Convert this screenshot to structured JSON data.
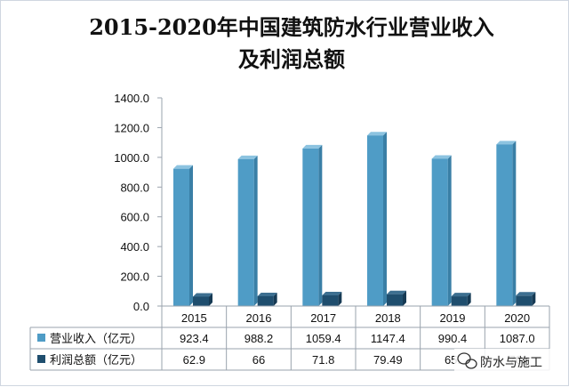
{
  "chart_data": {
    "type": "bar",
    "title_line1": "2015-2020年中国建筑防水行业营业收入",
    "title_line2": "及利润总额",
    "categories": [
      "2015",
      "2016",
      "2017",
      "2018",
      "2019",
      "2020"
    ],
    "series": [
      {
        "name": "营业收入（亿元）",
        "values": [
          923.4,
          988.2,
          1059.4,
          1147.4,
          990.4,
          1087.0
        ],
        "labels": [
          "923.4",
          "988.2",
          "1059.4",
          "1147.4",
          "990.4",
          "1087.0"
        ],
        "color": "#4f9cc6"
      },
      {
        "name": "利润总额（亿元）",
        "values": [
          62.9,
          66,
          71.8,
          79.49,
          65.4,
          70.0
        ],
        "labels": [
          "62.9",
          "66",
          "71.8",
          "79.49",
          "65.",
          "70."
        ],
        "color": "#1f4e6e"
      }
    ],
    "y_ticks": [
      "0.0",
      "200.0",
      "400.0",
      "600.0",
      "800.0",
      "1000.0",
      "1200.0",
      "1400.0"
    ],
    "ylim": [
      0,
      1400
    ],
    "grid": false,
    "legend_placement": "data-table"
  },
  "watermark": {
    "text": "防水与施工",
    "icon": "wechat-icon"
  }
}
